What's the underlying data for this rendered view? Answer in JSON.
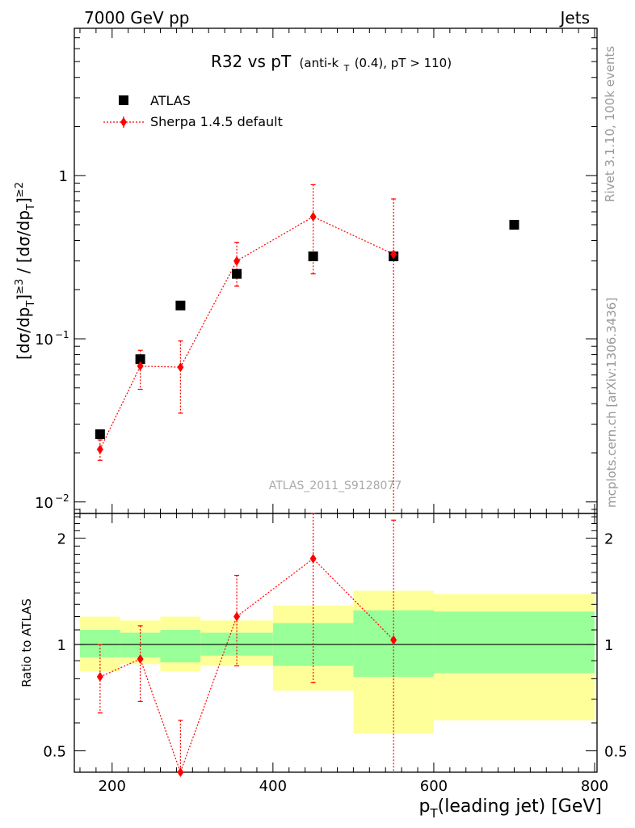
{
  "header": {
    "left": "7000 GeV pp",
    "right": "Jets",
    "side_top": "Rivet 3.1.10,  100k events",
    "side_bottom": "mcplots.cern.ch [arXiv:1306.3436]",
    "watermark": "ATLAS_2011_S9128077"
  },
  "chart_data": {
    "type": "scatter",
    "title": {
      "main": "R32 vs pT",
      "sub_a": "(anti-k",
      "sub_sub": "T",
      "sub_b": "(0.4), pT > 110)"
    },
    "xlabel": {
      "p": "p",
      "sub": "T",
      "rest": "(leading jet) [GeV]"
    },
    "ylabel_top": "[dσ/dp_T^lead]^{≥3} / [dσ/dp_T^lead]^{≥2}",
    "ylabel_bottom": "Ratio to ATLAS",
    "xlim": [
      153,
      803
    ],
    "top_ylim": [
      0.0085,
      8.0
    ],
    "top_yscale": "log",
    "bottom_ylim": [
      0.435,
      2.35
    ],
    "bottom_yscale": "log",
    "x_ticks": [
      200,
      400,
      600,
      800
    ],
    "x_tick_labels": [
      "200",
      "400",
      "600",
      "800"
    ],
    "top_y_ticks": [
      {
        "value": 1,
        "label": "1"
      },
      {
        "value": 0.1,
        "label": "10",
        "exp": "−1"
      },
      {
        "value": 0.01,
        "label": "10",
        "exp": "−2"
      }
    ],
    "bottom_y_ticks": [
      {
        "value": 0.5,
        "label": "0.5"
      },
      {
        "value": 1,
        "label": "1"
      },
      {
        "value": 2,
        "label": "2"
      }
    ],
    "legend": {
      "position": "top-left"
    },
    "series": [
      {
        "name": "ATLAS",
        "color": "#000000",
        "marker": "square",
        "points": [
          {
            "x": 185,
            "y": 0.026
          },
          {
            "x": 235,
            "y": 0.075
          },
          {
            "x": 285,
            "y": 0.16
          },
          {
            "x": 355,
            "y": 0.25
          },
          {
            "x": 450,
            "y": 0.32
          },
          {
            "x": 550,
            "y": 0.32
          },
          {
            "x": 700,
            "y": 0.5
          }
        ]
      },
      {
        "name": "Sherpa 1.4.5 default",
        "color": "#ff0000",
        "marker": "diamond",
        "line": "dotted",
        "points": [
          {
            "x": 185,
            "y": 0.021,
            "lo": 0.018,
            "hi": 0.024
          },
          {
            "x": 235,
            "y": 0.068,
            "lo": 0.049,
            "hi": 0.085
          },
          {
            "x": 285,
            "y": 0.067,
            "lo": 0.035,
            "hi": 0.097
          },
          {
            "x": 355,
            "y": 0.3,
            "lo": 0.21,
            "hi": 0.39
          },
          {
            "x": 450,
            "y": 0.56,
            "lo": 0.25,
            "hi": 0.88
          },
          {
            "x": 550,
            "y": 0.33,
            "lo": 0.0001,
            "hi": 0.72
          }
        ]
      }
    ],
    "ratio": {
      "reference_line": 1,
      "bands": [
        {
          "x0": 160,
          "x1": 210,
          "inner": [
            0.92,
            1.1
          ],
          "outer": [
            0.84,
            1.2
          ]
        },
        {
          "x0": 210,
          "x1": 260,
          "inner": [
            0.92,
            1.08
          ],
          "outer": [
            0.88,
            1.17
          ]
        },
        {
          "x0": 260,
          "x1": 310,
          "inner": [
            0.89,
            1.1
          ],
          "outer": [
            0.84,
            1.2
          ]
        },
        {
          "x0": 310,
          "x1": 400,
          "inner": [
            0.93,
            1.08
          ],
          "outer": [
            0.87,
            1.17
          ]
        },
        {
          "x0": 400,
          "x1": 500,
          "inner": [
            0.87,
            1.15
          ],
          "outer": [
            0.74,
            1.29
          ]
        },
        {
          "x0": 500,
          "x1": 600,
          "inner": [
            0.81,
            1.25
          ],
          "outer": [
            0.56,
            1.42
          ]
        },
        {
          "x0": 600,
          "x1": 800,
          "inner": [
            0.83,
            1.24
          ],
          "outer": [
            0.61,
            1.39
          ]
        }
      ],
      "band_colors": {
        "inner": "#99ff99",
        "outer": "#ffff99"
      },
      "points": [
        {
          "x": 185,
          "y": 0.81,
          "lo": 0.64,
          "hi": 1.0
        },
        {
          "x": 235,
          "y": 0.91,
          "lo": 0.69,
          "hi": 1.13
        },
        {
          "x": 285,
          "y": 0.42,
          "lo": 0.3,
          "hi": 0.61
        },
        {
          "x": 355,
          "y": 1.2,
          "lo": 0.87,
          "hi": 1.57
        },
        {
          "x": 450,
          "y": 1.75,
          "lo": 0.78,
          "hi": 2.75
        },
        {
          "x": 550,
          "y": 1.03,
          "lo": 0.3,
          "hi": 2.25
        }
      ]
    }
  }
}
